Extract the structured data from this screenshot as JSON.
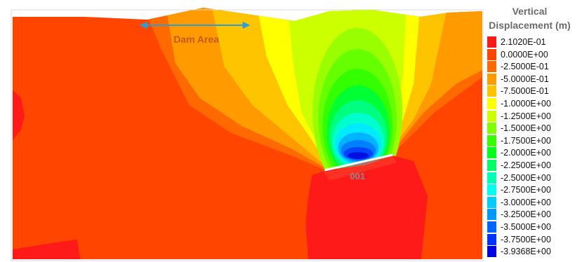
{
  "annotation": {
    "dam_area": "Dam Area",
    "panel_id": "001"
  },
  "legend": {
    "title_line1": "Vertical",
    "title_line2": "Displacement (m)",
    "entries": [
      {
        "label": "2.1020E-01",
        "color": "#ff1a1a"
      },
      {
        "label": "0.0000E+00",
        "color": "#ff4500"
      },
      {
        "label": "-2.5000E-01",
        "color": "#ff6a00"
      },
      {
        "label": "-5.0000E-01",
        "color": "#ff9a00"
      },
      {
        "label": "-7.5000E-01",
        "color": "#ffc400"
      },
      {
        "label": "-1.0000E+00",
        "color": "#ffff00"
      },
      {
        "label": "-1.2500E+00",
        "color": "#ccff00"
      },
      {
        "label": "-1.5000E+00",
        "color": "#80ff00"
      },
      {
        "label": "-1.7500E+00",
        "color": "#33ff00"
      },
      {
        "label": "-2.0000E+00",
        "color": "#00ff1a"
      },
      {
        "label": "-2.2500E+00",
        "color": "#00ff66"
      },
      {
        "label": "-2.5000E+00",
        "color": "#00ffb3"
      },
      {
        "label": "-2.7500E+00",
        "color": "#00fff0"
      },
      {
        "label": "-3.0000E+00",
        "color": "#00ccff"
      },
      {
        "label": "-3.2500E+00",
        "color": "#0099ff"
      },
      {
        "label": "-3.5000E+00",
        "color": "#0066ff"
      },
      {
        "label": "-3.7500E+00",
        "color": "#0033ff"
      },
      {
        "label": "-3.9368E+00",
        "color": "#0000e6"
      }
    ]
  }
}
